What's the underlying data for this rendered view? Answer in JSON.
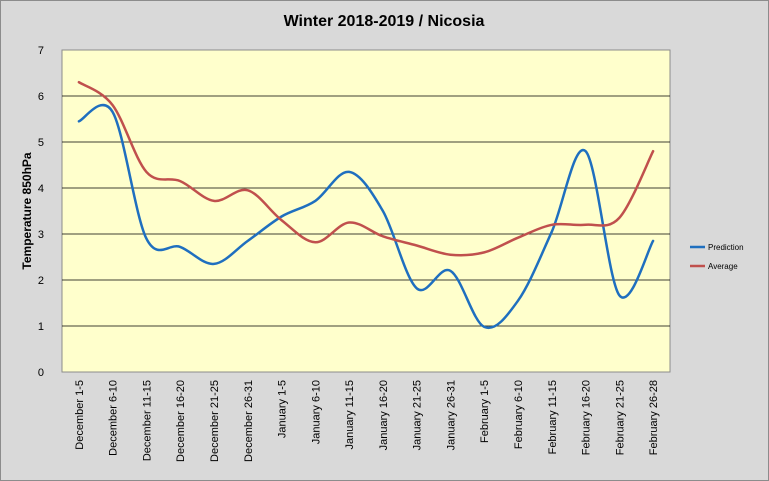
{
  "chart_data": {
    "type": "line",
    "title": "Winter 2018-2019 / Nicosia",
    "ylabel": "Temperature 850hPa",
    "xlabel": "",
    "ylim": [
      0,
      7
    ],
    "yticks": [
      "0",
      "1",
      "2",
      "3",
      "4",
      "5",
      "6",
      "7"
    ],
    "grid": true,
    "legend_position": "right",
    "background_color": "#ffffcc",
    "categories": [
      "December 1-5",
      "December 6-10",
      "December 11-15",
      "December 16-20",
      "December 21-25",
      "December 26-31",
      "January 1-5",
      "January 6-10",
      "January 11-15",
      "January 16-20",
      "January 21-25",
      "January 26-31",
      "February 1-5",
      "February 6-10",
      "February 11-15",
      "February 16-20",
      "February 21-25",
      "February 26-28"
    ],
    "series": [
      {
        "name": "Prediction",
        "color": "#1f6fbf",
        "values": [
          5.45,
          5.65,
          2.9,
          2.72,
          2.35,
          2.85,
          3.38,
          3.72,
          4.35,
          3.5,
          1.82,
          2.2,
          0.98,
          1.55,
          3.05,
          4.8,
          1.67,
          2.85
        ]
      },
      {
        "name": "Average",
        "color": "#c0504d",
        "values": [
          6.3,
          5.8,
          4.35,
          4.15,
          3.72,
          3.95,
          3.3,
          2.82,
          3.25,
          2.95,
          2.75,
          2.55,
          2.6,
          2.92,
          3.2,
          3.2,
          3.35,
          4.8
        ]
      }
    ]
  }
}
